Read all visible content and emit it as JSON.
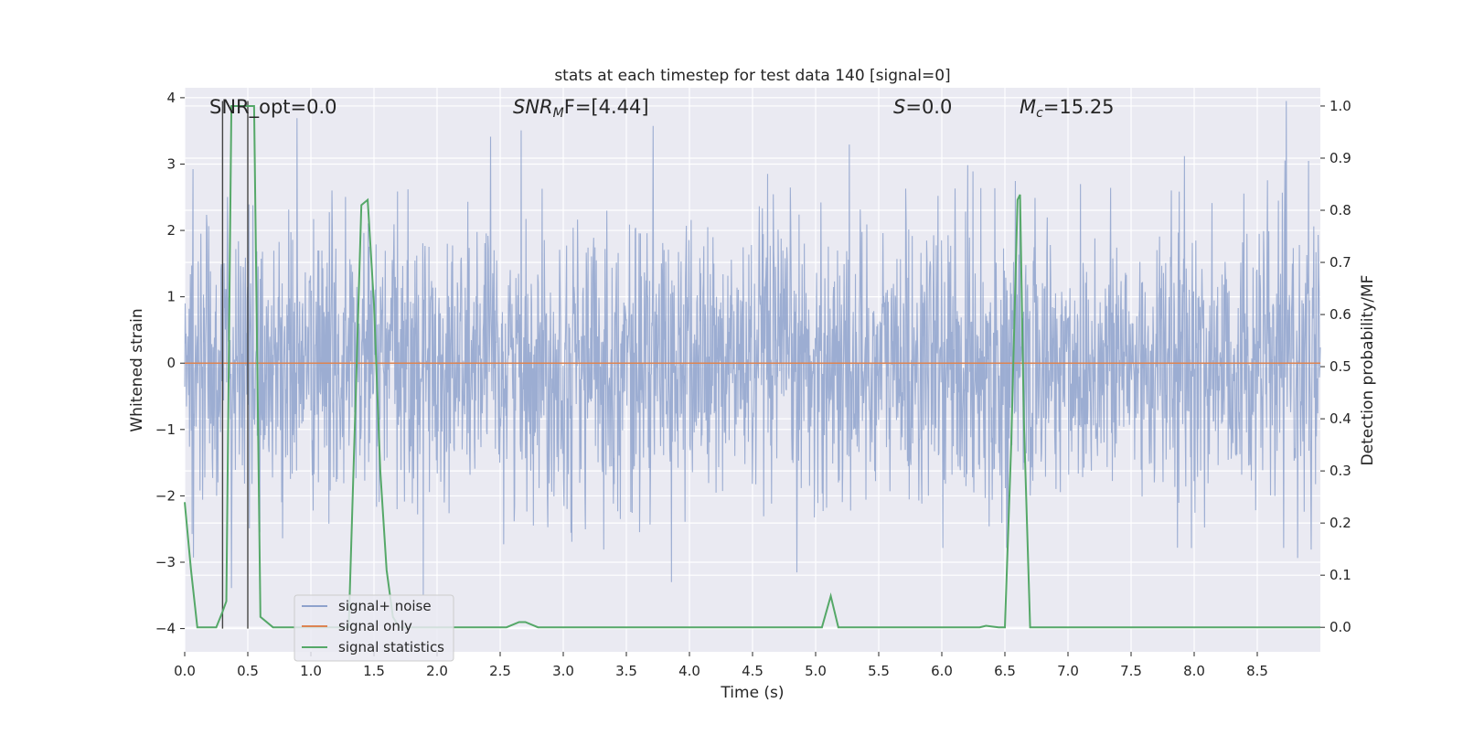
{
  "chart_data": {
    "type": "line",
    "title": "stats at each timestep for test data 140 [signal=0]",
    "xlabel": "Time (s)",
    "ylabel": "Whitened strain",
    "y2label": "Detection probability/MF",
    "xlim": [
      0.0,
      9.0
    ],
    "ylim": [
      -4.35,
      4.15
    ],
    "y2lim": [
      -0.047,
      1.035
    ],
    "x_ticks": [
      "0.0",
      "0.5",
      "1.0",
      "1.5",
      "2.0",
      "2.5",
      "3.0",
      "3.5",
      "4.0",
      "4.5",
      "5.0",
      "5.5",
      "6.0",
      "6.5",
      "7.0",
      "7.5",
      "8.0",
      "8.5"
    ],
    "y_ticks": [
      "4",
      "3",
      "2",
      "1",
      "0",
      "−1",
      "−2",
      "−3",
      "−4"
    ],
    "y2_ticks": [
      "1.0",
      "0.9",
      "0.8",
      "0.7",
      "0.6",
      "0.5",
      "0.4",
      "0.3",
      "0.2",
      "0.1",
      "0.0"
    ],
    "grid": true,
    "legend_position": "lower-left",
    "annotations": {
      "snr_opt": "SNR_opt=0.0",
      "snr_mf_base": "SNR",
      "snr_mf_sub": "M",
      "snr_mf_rest": "F=[4.44]",
      "s_base": "S",
      "s_rest": "=0.0",
      "mc_base": "M",
      "mc_sub": "c",
      "mc_rest": "=15.25"
    },
    "series": [
      {
        "name": "signal+ noise",
        "color": "#8ea2cc",
        "axis": "left",
        "description_values": "white-noise strain, roughly within ±2.5 with spikes to ±4"
      },
      {
        "name": "signal only",
        "color": "#dd8452",
        "axis": "left",
        "x": [
          0.0,
          9.0
        ],
        "values": [
          0.0,
          0.0
        ]
      },
      {
        "name": "signal statistics",
        "color": "#55a868",
        "axis": "right",
        "x": [
          0.0,
          0.05,
          0.1,
          0.2,
          0.25,
          0.3,
          0.33,
          0.37,
          0.4,
          0.45,
          0.5,
          0.55,
          0.6,
          0.7,
          0.8,
          0.9,
          1.0,
          1.1,
          1.2,
          1.3,
          1.35,
          1.4,
          1.45,
          1.5,
          1.55,
          1.6,
          1.65,
          1.7,
          1.8,
          2.0,
          2.2,
          2.4,
          2.55,
          2.65,
          2.7,
          2.8,
          2.9,
          3.0,
          3.5,
          4.0,
          4.5,
          5.0,
          5.05,
          5.12,
          5.18,
          5.25,
          5.5,
          6.0,
          6.3,
          6.35,
          6.45,
          6.5,
          6.55,
          6.6,
          6.62,
          6.65,
          6.7,
          6.8,
          7.0,
          7.3,
          7.4,
          8.0,
          8.1,
          8.2,
          9.0
        ],
        "values": [
          0.24,
          0.11,
          0.0,
          0.0,
          0.0,
          0.03,
          0.05,
          1.0,
          1.0,
          1.0,
          1.0,
          1.0,
          0.02,
          0.0,
          0.0,
          0.0,
          0.0,
          0.0,
          0.0,
          0.0,
          0.4,
          0.81,
          0.82,
          0.62,
          0.3,
          0.11,
          0.02,
          0.0,
          0.0,
          0.0,
          0.0,
          0.0,
          0.0,
          0.01,
          0.01,
          0.0,
          0.0,
          0.0,
          0.0,
          0.0,
          0.0,
          0.0,
          0.0,
          0.06,
          0.0,
          0.0,
          0.0,
          0.0,
          0.0,
          0.003,
          0.0,
          0.0,
          0.35,
          0.82,
          0.83,
          0.4,
          0.0,
          0.0,
          0.0,
          0.0,
          0.0,
          0.0,
          0.0,
          0.0,
          0.0
        ]
      }
    ],
    "vertical_markers_x": [
      0.3,
      0.5
    ]
  }
}
